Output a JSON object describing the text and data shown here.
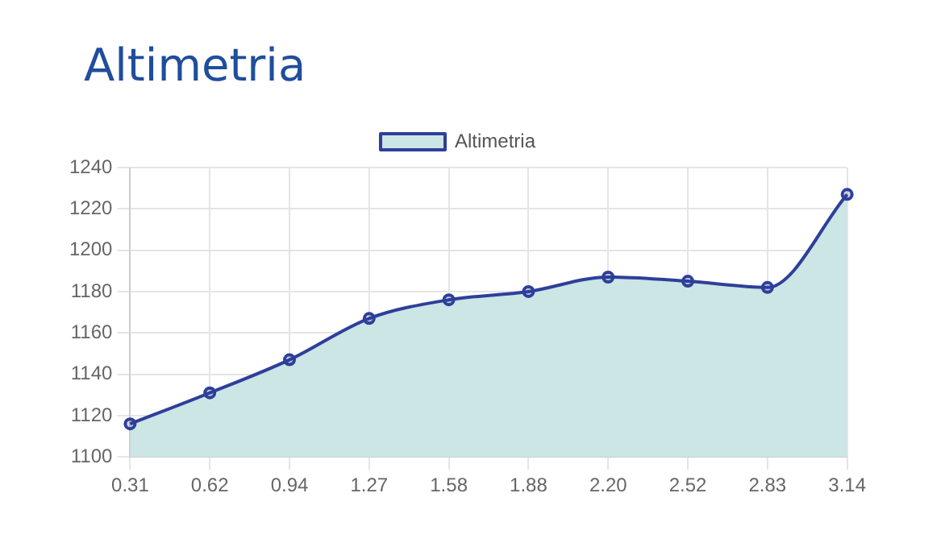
{
  "chart_data": {
    "type": "area",
    "title": "Altimetria",
    "categories": [
      "0.31",
      "0.62",
      "0.94",
      "1.27",
      "1.58",
      "1.88",
      "2.20",
      "2.52",
      "2.83",
      "3.14"
    ],
    "series": [
      {
        "name": "Altimetria",
        "color": "#2e3f9a",
        "values": [
          1116,
          1131,
          1147,
          1167,
          1176,
          1180,
          1187,
          1185,
          1182,
          1227
        ]
      }
    ],
    "ylim": [
      1100,
      1240
    ],
    "yticks": [
      1100,
      1120,
      1140,
      1160,
      1180,
      1200,
      1220,
      1240
    ],
    "grid": true,
    "legend": "top",
    "marker": "circle"
  }
}
